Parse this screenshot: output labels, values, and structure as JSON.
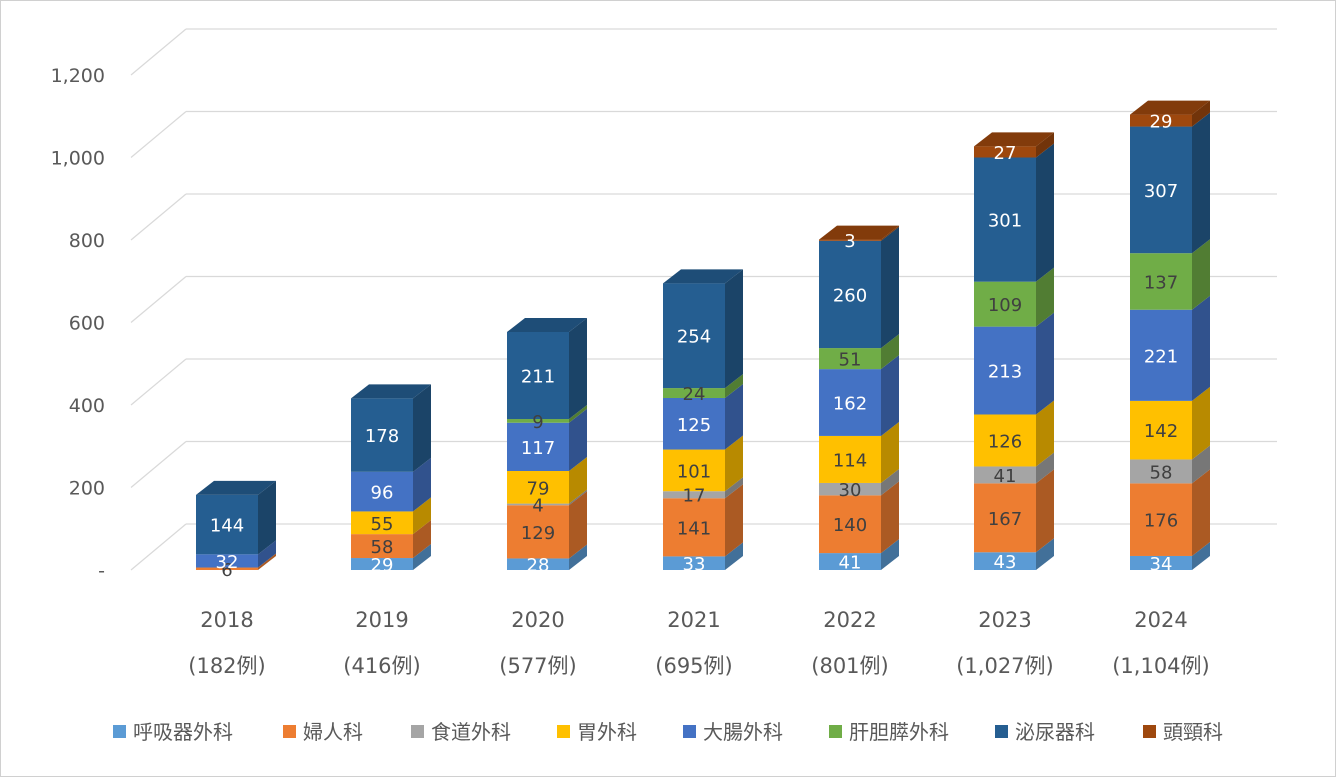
{
  "chart_data": {
    "type": "bar",
    "stacked": true,
    "three_d": true,
    "categories": [
      "2018",
      "2019",
      "2020",
      "2021",
      "2022",
      "2023",
      "2024"
    ],
    "category_subtitles": [
      "(182例)",
      "(416例)",
      "(577例)",
      "(695例)",
      "(801例)",
      "(1,027例)",
      "(1,104例)"
    ],
    "series": [
      {
        "name": "呼吸器外科",
        "color": "#5B9BD5",
        "values": [
          null,
          29,
          28,
          33,
          41,
          43,
          34
        ],
        "labels": [
          "",
          "29",
          "28",
          "33",
          "41",
          "43",
          "34"
        ]
      },
      {
        "name": "婦人科",
        "color": "#ED7D31",
        "values": [
          6,
          58,
          129,
          141,
          140,
          167,
          176
        ],
        "labels": [
          "6",
          "58",
          "129",
          "141",
          "140",
          "167",
          "176"
        ]
      },
      {
        "name": "食道外科",
        "color": "#A5A5A5",
        "values": [
          null,
          null,
          4,
          17,
          30,
          41,
          58
        ],
        "labels": [
          "",
          "",
          "4",
          "17",
          "30",
          "41",
          "58"
        ]
      },
      {
        "name": "胃外科",
        "color": "#FFC000",
        "values": [
          null,
          55,
          79,
          101,
          114,
          126,
          142
        ],
        "labels": [
          "",
          "55",
          "79",
          "101",
          "114",
          "126",
          "142"
        ]
      },
      {
        "name": "大腸外科",
        "color": "#4472C4",
        "values": [
          32,
          96,
          117,
          125,
          162,
          213,
          221
        ],
        "labels": [
          "32",
          "96",
          "117",
          "125",
          "162",
          "213",
          "221"
        ]
      },
      {
        "name": "肝胆膵外科",
        "color": "#70AD47",
        "values": [
          null,
          null,
          9,
          24,
          51,
          109,
          137
        ],
        "labels": [
          "",
          "",
          "9",
          "24",
          "51",
          "109",
          "137"
        ]
      },
      {
        "name": "泌尿器科",
        "color": "#255E91",
        "values": [
          144,
          178,
          211,
          254,
          260,
          301,
          307
        ],
        "labels": [
          "144",
          "178",
          "211",
          "254",
          "260",
          "301",
          "307"
        ]
      },
      {
        "name": "頭頸科",
        "color": "#9E480E",
        "values": [
          null,
          null,
          null,
          null,
          3,
          27,
          29
        ],
        "labels": [
          "",
          "",
          "",
          "",
          "3",
          "27",
          "29"
        ]
      }
    ],
    "yticks": [
      "-",
      "200",
      "400",
      "600",
      "800",
      "1,000",
      "1,200"
    ],
    "ylim": [
      0,
      1200
    ],
    "grid": true,
    "legend_position": "bottom"
  }
}
